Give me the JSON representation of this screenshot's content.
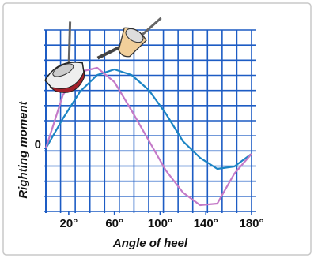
{
  "chart_data": {
    "type": "line",
    "x_label": "Angle of heel",
    "y_label": "Righting moment",
    "x": [
      0,
      15,
      30,
      45,
      60,
      75,
      90,
      105,
      120,
      135,
      150,
      165,
      180
    ],
    "series": [
      {
        "color": "#1b84c4",
        "values": [
          0,
          1.9,
          3.6,
          4.65,
          5.0,
          4.65,
          3.7,
          2.2,
          0.45,
          -0.6,
          -1.3,
          -1.15,
          -0.35
        ]
      },
      {
        "color": "#c47ac8",
        "values": [
          0,
          3.4,
          4.85,
          5.1,
          4.2,
          2.4,
          0.5,
          -1.4,
          -2.8,
          -3.6,
          -3.5,
          -1.6,
          -0.35
        ]
      }
    ],
    "xlim": [
      0,
      180
    ],
    "ylim": [
      -4,
      7.5
    ],
    "xticks": [
      {
        "value": 20,
        "label": "20°"
      },
      {
        "value": 60,
        "label": "60°"
      },
      {
        "value": 100,
        "label": "100°"
      },
      {
        "value": 140,
        "label": "140°"
      },
      {
        "value": 180,
        "label": "180°"
      }
    ],
    "yticks": [
      0
    ]
  }
}
